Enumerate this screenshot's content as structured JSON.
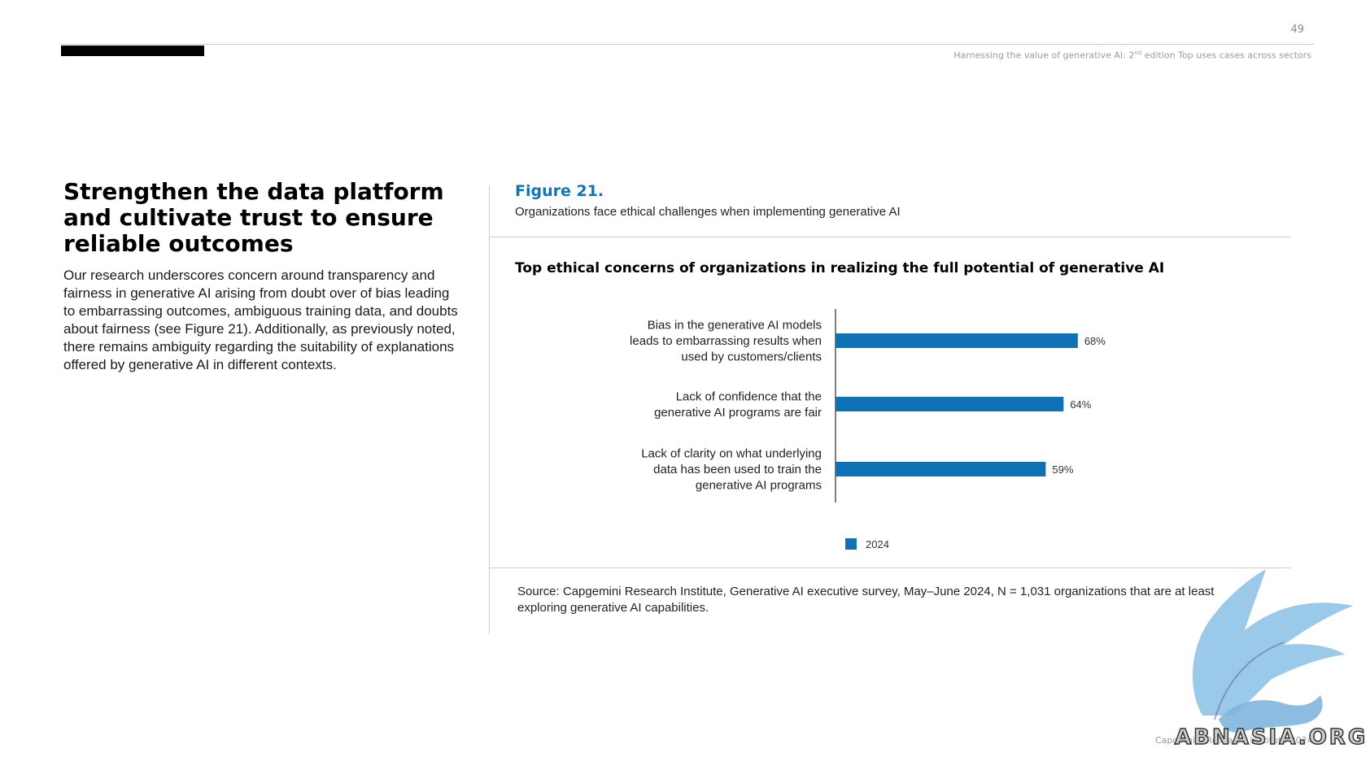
{
  "page": {
    "number": "49",
    "header_main": "Harnessing the value of generative AI: 2",
    "header_sup": "nd",
    "header_rest": " edition Top uses cases across sectors",
    "footer": "Capgemini Research Institute 2024"
  },
  "left": {
    "title": "Strengthen the data platform and cultivate trust to ensure reliable outcomes",
    "body": "Our research underscores concern around transparency and fairness in generative AI arising from doubt over of bias leading to embarrassing outcomes, ambiguous training data, and doubts about fairness (see Figure 21). Additionally, as previously noted, there remains ambiguity regarding the suitability of explanations offered by generative AI in different contexts."
  },
  "figure": {
    "label": "Figure 21.",
    "caption": "Organizations face ethical challenges when implementing generative AI",
    "source": "Source: Capgemini Research Institute, Generative AI executive survey, May–June 2024, N = 1,031 organizations that are at least exploring generative AI capabilities."
  },
  "colors": {
    "accent": "#1274b8",
    "bar": "#0f72b5"
  },
  "chart_data": {
    "type": "bar",
    "orientation": "horizontal",
    "title": "Top ethical concerns of organizations in realizing the full potential of generative AI",
    "categories": [
      [
        "Bias in the generative AI models",
        "leads to embarrassing results when",
        "used by customers/clients"
      ],
      [
        "Lack of confidence that the",
        "generative AI programs are fair"
      ],
      [
        "Lack of clarity on what underlying",
        "data has been used to train the",
        "generative AI programs"
      ]
    ],
    "series": [
      {
        "name": "2024",
        "values": [
          68,
          64,
          59
        ],
        "labels": [
          "68%",
          "64%",
          "59%"
        ]
      }
    ],
    "xlim": [
      0,
      100
    ],
    "grid": false,
    "legend": "bottom-center"
  },
  "watermark": {
    "text": "ABNASIA.ORG"
  }
}
